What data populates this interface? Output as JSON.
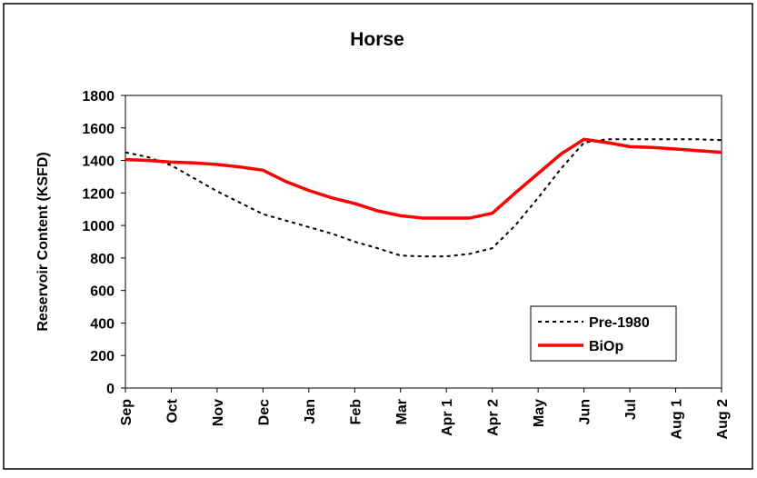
{
  "chart_data": {
    "type": "line",
    "title": "Horse",
    "y_label": "Reservoir Content (KSFD)",
    "categories": [
      "Sep",
      null,
      "Oct",
      null,
      "Nov",
      null,
      "Dec",
      null,
      "Jan",
      null,
      "Feb",
      null,
      "Mar",
      null,
      "Apr 1",
      null,
      "Apr 2",
      null,
      "May",
      null,
      "Jun",
      null,
      "Jul",
      null,
      "Aug 1",
      null,
      "Aug 2"
    ],
    "series": [
      {
        "name": "Pre-1980",
        "color": "#000000",
        "style": "dashed",
        "values": [
          1450,
          1420,
          1370,
          1290,
          1210,
          1140,
          1070,
          1030,
          990,
          950,
          900,
          860,
          815,
          810,
          810,
          825,
          860,
          1000,
          1170,
          1350,
          1510,
          1530,
          1530,
          1530,
          1530,
          1530,
          1525
        ]
      },
      {
        "name": "BiOp",
        "color": "#ff0000",
        "style": "solid",
        "values": [
          1405,
          1400,
          1390,
          1385,
          1375,
          1360,
          1340,
          1270,
          1215,
          1170,
          1135,
          1090,
          1060,
          1045,
          1045,
          1045,
          1075,
          1200,
          1320,
          1440,
          1530,
          1510,
          1485,
          1480,
          1470,
          1460,
          1450
        ]
      }
    ],
    "ylim": [
      0,
      1800
    ],
    "yticks": [
      0,
      200,
      400,
      600,
      800,
      1000,
      1200,
      1400,
      1600,
      1800
    ],
    "grid": false,
    "legend": "lower-right"
  }
}
